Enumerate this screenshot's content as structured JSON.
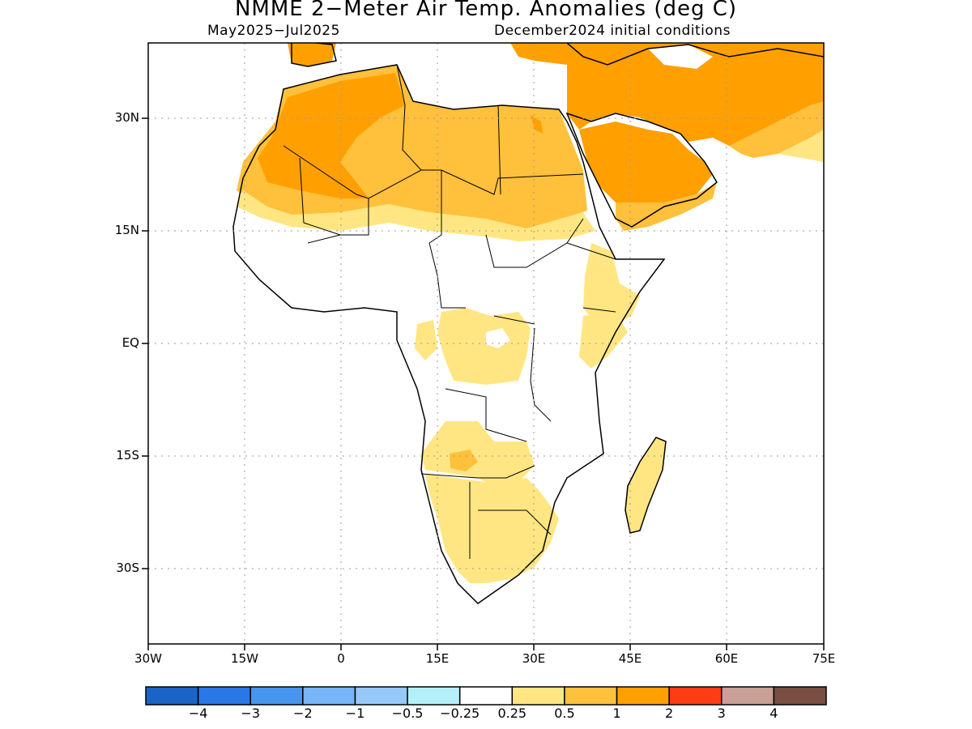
{
  "title": "NMME 2−Meter Air Temp. Anomalies (deg C)",
  "subtitle_left": "May2025−Jul2025",
  "subtitle_right": "December2024 initial conditions",
  "map": {
    "lat_labels": [
      "30N",
      "15N",
      "EQ",
      "15S",
      "30S"
    ],
    "lon_labels": [
      "30W",
      "15W",
      "0",
      "15E",
      "30E",
      "45E",
      "60E",
      "75E"
    ],
    "grid": "dotted",
    "region": "Africa and Middle East"
  },
  "colorbar": {
    "colors": [
      "#1a64c8",
      "#2878e8",
      "#4696f0",
      "#78b4f8",
      "#96c8fa",
      "#b4f0fa",
      "#ffffff",
      "#ffe682",
      "#ffc03c",
      "#ffa000",
      "#ff3c14",
      "#c8a096",
      "#7a4e42"
    ],
    "labels": [
      "−4",
      "−3",
      "−2",
      "−1",
      "−0.5",
      "−0.25",
      "0.25",
      "0.5",
      "1",
      "2",
      "3",
      "4"
    ]
  },
  "legend_categories": {
    "light_yellow": "0.25–0.5",
    "light_orange": "0.5–1",
    "orange": "1–2"
  }
}
